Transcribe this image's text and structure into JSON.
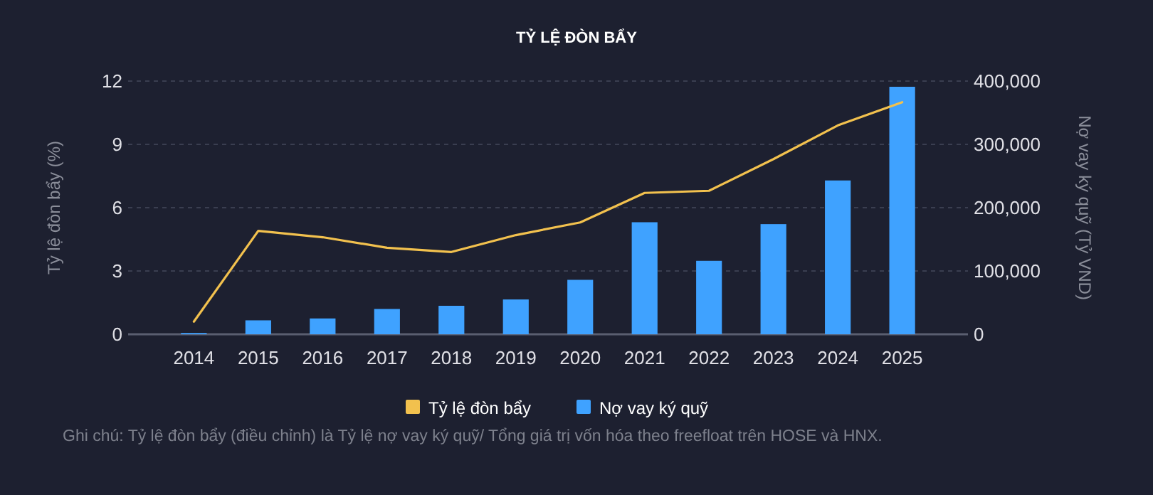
{
  "chart_data": {
    "type": "bar",
    "title": "TỶ LỆ ĐÒN BẨY",
    "ylabel": "Tỷ lệ đòn bẩy (%)",
    "y2label": "Nợ vay ký quỹ (Tỷ VND)",
    "categories": [
      "2014",
      "2015",
      "2016",
      "2017",
      "2018",
      "2019",
      "2020",
      "2021",
      "2022",
      "2023",
      "2024",
      "2025"
    ],
    "series": [
      {
        "name": "Tỷ lệ đòn bẩy",
        "type": "line",
        "color": "#f2c14e",
        "values": [
          0.6,
          4.9,
          4.6,
          4.1,
          3.9,
          4.7,
          5.3,
          6.7,
          6.8,
          8.3,
          9.9,
          11.0
        ]
      },
      {
        "name": "Nợ vay ký quỹ",
        "axis": "y2",
        "color": "#3fa2ff",
        "values": [
          2000,
          22000,
          25000,
          40000,
          45000,
          55000,
          86000,
          177000,
          116000,
          174000,
          243000,
          391000
        ]
      }
    ],
    "ylim": [
      0,
      12
    ],
    "yticks": [
      0,
      3,
      6,
      9,
      12
    ],
    "y2lim": [
      0,
      400000
    ],
    "y2ticks": [
      {
        "value": 0,
        "label": "0"
      },
      {
        "value": 100000,
        "label": "100,000"
      },
      {
        "value": 200000,
        "label": "200,000"
      },
      {
        "value": 300000,
        "label": "300,000"
      },
      {
        "value": 400000,
        "label": "400,000"
      }
    ],
    "grid": "y",
    "legend": "bottom",
    "marker": "none",
    "line_style": "solid",
    "annotations": [
      "Ghi chú: Tỷ lệ đòn bẩy (điều chỉnh) là Tỷ lệ nợ vay ký quỹ/ Tổng giá trị vốn hóa theo freefloat trên HOSE và HNX."
    ]
  }
}
